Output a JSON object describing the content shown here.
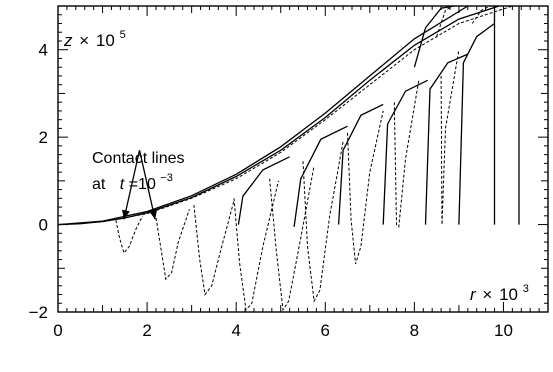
{
  "chart_data": {
    "type": "line",
    "title": "",
    "x_axis": {
      "var": "r",
      "times": "×",
      "base": "10",
      "exp": "3",
      "range": [
        0,
        11
      ],
      "ticks": [
        "0",
        "2",
        "4",
        "6",
        "8",
        "10"
      ],
      "tick_values": [
        0,
        2,
        4,
        6,
        8,
        10
      ]
    },
    "y_axis": {
      "var": "z",
      "times": "×",
      "base": "10",
      "exp": "5",
      "range": [
        -2,
        5
      ],
      "ticks": [
        "−2",
        "0",
        "2",
        "4"
      ],
      "tick_values": [
        -2,
        0,
        2,
        4
      ]
    },
    "annotation": {
      "line1": "Contact lines",
      "at": "at",
      "t": "t",
      "eq": "=10",
      "exp": "−3",
      "targets": [
        [
          1.48,
          0.12
        ],
        [
          2.18,
          0.12
        ]
      ]
    },
    "series": [
      {
        "style": "solid",
        "points": [
          [
            0,
            0
          ],
          [
            0.5,
            0.02
          ],
          [
            1,
            0.07
          ],
          [
            1.5,
            0.15
          ],
          [
            2,
            0.27
          ],
          [
            3,
            0.62
          ],
          [
            4,
            1.1
          ],
          [
            5,
            1.7
          ],
          [
            6,
            2.45
          ],
          [
            7,
            3.3
          ],
          [
            8,
            4.1
          ],
          [
            9,
            4.7
          ],
          [
            9.9,
            5.0
          ]
        ]
      },
      {
        "style": "solid",
        "points": [
          [
            0,
            0
          ],
          [
            1,
            0.08
          ],
          [
            2,
            0.3
          ],
          [
            3,
            0.66
          ],
          [
            4,
            1.15
          ],
          [
            5,
            1.78
          ],
          [
            6,
            2.55
          ],
          [
            7,
            3.4
          ],
          [
            8,
            4.25
          ],
          [
            9.2,
            5.0
          ]
        ]
      },
      {
        "style": "dashed",
        "points": [
          [
            0,
            0
          ],
          [
            1,
            0.06
          ],
          [
            2,
            0.25
          ],
          [
            3,
            0.6
          ],
          [
            4,
            1.05
          ],
          [
            5,
            1.65
          ],
          [
            6,
            2.4
          ],
          [
            7,
            3.2
          ],
          [
            8,
            4.0
          ],
          [
            9,
            4.6
          ],
          [
            10.2,
            5.0
          ]
        ]
      },
      {
        "style": "solid",
        "points": [
          [
            4.05,
            0.0
          ],
          [
            4.15,
            0.65
          ],
          [
            4.6,
            1.25
          ],
          [
            5.2,
            1.55
          ]
        ]
      },
      {
        "style": "solid",
        "points": [
          [
            5.3,
            -0.05
          ],
          [
            5.45,
            1.05
          ],
          [
            5.9,
            1.95
          ],
          [
            6.5,
            2.25
          ]
        ]
      },
      {
        "style": "solid",
        "points": [
          [
            6.3,
            0.0
          ],
          [
            6.4,
            1.7
          ],
          [
            6.8,
            2.5
          ],
          [
            7.3,
            2.75
          ]
        ]
      },
      {
        "style": "solid",
        "points": [
          [
            7.3,
            0.0
          ],
          [
            7.4,
            2.3
          ],
          [
            7.8,
            3.05
          ],
          [
            8.3,
            3.3
          ]
        ]
      },
      {
        "style": "solid",
        "points": [
          [
            8.25,
            0.0
          ],
          [
            8.35,
            3.1
          ],
          [
            8.75,
            3.7
          ],
          [
            9.2,
            3.9
          ]
        ]
      },
      {
        "style": "solid",
        "points": [
          [
            9.0,
            0.0
          ],
          [
            9.1,
            3.7
          ],
          [
            9.4,
            4.3
          ],
          [
            9.8,
            4.6
          ]
        ]
      },
      {
        "style": "solid",
        "points": [
          [
            9.8,
            0.0
          ],
          [
            9.8,
            5.0
          ]
        ]
      },
      {
        "style": "solid",
        "points": [
          [
            10.35,
            0.0
          ],
          [
            10.35,
            5.0
          ]
        ]
      },
      {
        "style": "solid",
        "points": [
          [
            8.0,
            3.6
          ],
          [
            8.25,
            4.5
          ],
          [
            8.6,
            4.95
          ],
          [
            8.9,
            5.0
          ]
        ]
      },
      {
        "style": "dashed",
        "points": [
          [
            1.3,
            0.1
          ],
          [
            1.38,
            -0.3
          ],
          [
            1.48,
            -0.65
          ],
          [
            1.6,
            -0.5
          ],
          [
            1.75,
            -0.1
          ],
          [
            1.9,
            0.2
          ]
        ]
      },
      {
        "style": "dashed",
        "points": [
          [
            2.2,
            0.15
          ],
          [
            2.32,
            -0.6
          ],
          [
            2.42,
            -1.25
          ],
          [
            2.55,
            -1.1
          ],
          [
            2.7,
            -0.4
          ],
          [
            2.95,
            0.35
          ]
        ]
      },
      {
        "style": "dashed",
        "points": [
          [
            3.05,
            0.45
          ],
          [
            3.18,
            -0.8
          ],
          [
            3.3,
            -1.6
          ],
          [
            3.45,
            -1.4
          ],
          [
            3.65,
            -0.6
          ],
          [
            3.95,
            0.55
          ]
        ]
      },
      {
        "style": "dashed",
        "points": [
          [
            3.95,
            0.6
          ],
          [
            4.08,
            -0.9
          ],
          [
            4.22,
            -1.95
          ],
          [
            4.35,
            -1.8
          ],
          [
            4.6,
            -0.5
          ],
          [
            4.95,
            1.0
          ]
        ]
      },
      {
        "style": "dashed",
        "points": [
          [
            4.75,
            1.05
          ],
          [
            4.9,
            -0.6
          ],
          [
            5.05,
            -1.95
          ],
          [
            5.18,
            -1.75
          ],
          [
            5.45,
            -0.3
          ],
          [
            5.75,
            1.35
          ]
        ]
      },
      {
        "style": "dashed",
        "points": [
          [
            5.5,
            1.45
          ],
          [
            5.6,
            -0.5
          ],
          [
            5.75,
            -1.75
          ],
          [
            5.88,
            -1.5
          ],
          [
            6.1,
            0.2
          ],
          [
            6.4,
            1.9
          ]
        ]
      },
      {
        "style": "dashed",
        "points": [
          [
            6.5,
            2.1
          ],
          [
            6.58,
            0.1
          ],
          [
            6.68,
            -0.9
          ],
          [
            6.8,
            -0.5
          ],
          [
            7.0,
            1.2
          ],
          [
            7.3,
            2.6
          ]
        ]
      },
      {
        "style": "dashed",
        "points": [
          [
            7.55,
            2.8
          ],
          [
            7.6,
            0.0
          ],
          [
            7.65,
            -0.05
          ],
          [
            7.8,
            1.5
          ],
          [
            8.1,
            3.3
          ]
        ]
      },
      {
        "style": "dashed",
        "points": [
          [
            8.6,
            3.4
          ],
          [
            8.62,
            0.0
          ],
          [
            8.7,
            2.2
          ],
          [
            9.0,
            4.0
          ]
        ]
      },
      {
        "style": "dashed",
        "points": [
          [
            8.5,
            4.3
          ],
          [
            8.7,
            4.9
          ],
          [
            8.85,
            5.0
          ]
        ]
      },
      {
        "style": "dashed",
        "points": [
          [
            9.3,
            4.6
          ],
          [
            9.5,
            4.9
          ],
          [
            9.7,
            5.0
          ]
        ]
      }
    ]
  }
}
